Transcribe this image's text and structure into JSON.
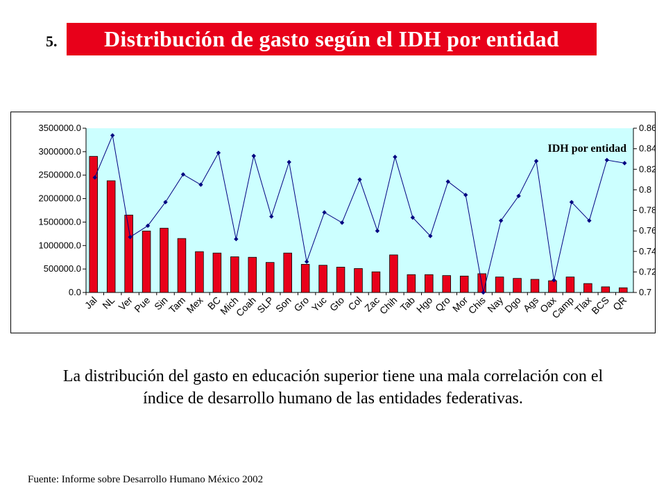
{
  "slide": {
    "number": "5.",
    "title": "Distribución de gasto según el IDH por entidad"
  },
  "chart_data": {
    "type": "bar",
    "combo": "bar + line (secondary axis)",
    "categories": [
      "Jal",
      "NL",
      "Ver",
      "Pue",
      "Sin",
      "Tam",
      "Mex",
      "BC",
      "Mich",
      "Coah",
      "SLP",
      "Son",
      "Gro",
      "Yuc",
      "Gto",
      "Col",
      "Zac",
      "Chih",
      "Tab",
      "Hgo",
      "Qro",
      "Mor",
      "Chis",
      "Nay",
      "Dgo",
      "Ags",
      "Oax",
      "Camp",
      "Tlax",
      "BCS",
      "QR"
    ],
    "series": [
      {
        "axis": "left",
        "kind": "bar",
        "color": "#e8001a",
        "values": [
          2900000,
          2380000,
          1650000,
          1310000,
          1370000,
          1150000,
          870000,
          840000,
          760000,
          750000,
          640000,
          840000,
          600000,
          580000,
          540000,
          510000,
          440000,
          800000,
          380000,
          380000,
          360000,
          350000,
          400000,
          330000,
          300000,
          280000,
          250000,
          330000,
          190000,
          120000,
          100000
        ]
      },
      {
        "name": "IDH por entidad",
        "axis": "right",
        "kind": "line",
        "color": "#000080",
        "values": [
          0.812,
          0.853,
          0.754,
          0.765,
          0.788,
          0.815,
          0.805,
          0.836,
          0.752,
          0.833,
          0.774,
          0.827,
          0.73,
          0.778,
          0.768,
          0.81,
          0.76,
          0.832,
          0.773,
          0.755,
          0.808,
          0.795,
          0.7,
          0.77,
          0.794,
          0.828,
          0.712,
          0.788,
          0.77,
          0.829,
          0.826
        ]
      }
    ],
    "y_left": {
      "min": 0,
      "max": 3500000,
      "step": 500000,
      "tick_labels": [
        "0.0",
        "500000.0",
        "1000000.0",
        "1500000.0",
        "2000000.0",
        "2500000.0",
        "3000000.0",
        "3500000.0"
      ]
    },
    "y_right": {
      "min": 0.7,
      "max": 0.86,
      "step": 0.02,
      "tick_labels": [
        "0.7",
        "0.72",
        "0.74",
        "0.76",
        "0.78",
        "0.8",
        "0.82",
        "0.84",
        "0.86"
      ]
    },
    "plot_background": "#ccffff",
    "grid": false,
    "annotation": "IDH por entidad"
  },
  "caption": "La distribución del gasto en educación superior tiene una mala correlación con el índice de desarrollo humano de las entidades federativas.",
  "footer": "Fuente: Informe sobre Desarrollo Humano México 2002"
}
